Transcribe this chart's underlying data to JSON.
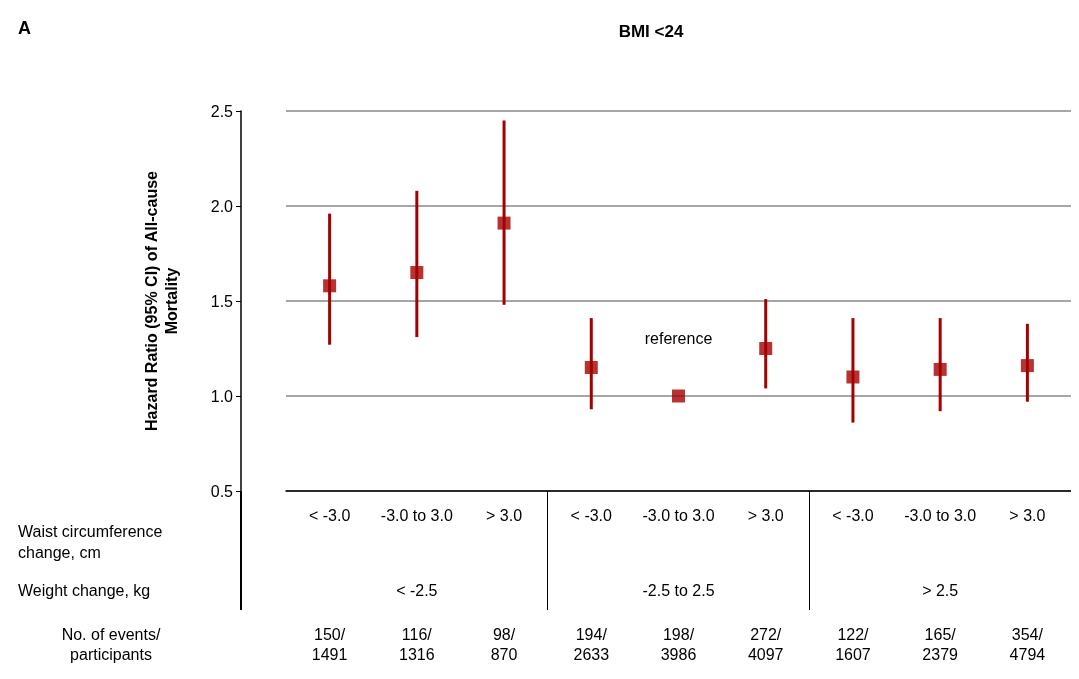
{
  "chart_data": {
    "type": "scatter",
    "title": "BMI <24",
    "xlabel": "Waist circumference change, cm",
    "ylabel": "Hazard Ratio (95% CI) of All-cause\nMortality",
    "categories": [
      "< -3.0",
      "-3.0 to 3.0",
      "> 3.0",
      "< -3.0",
      "-3.0 to 3.0",
      "> 3.0",
      "< -3.0",
      "-3.0 to 3.0",
      "> 3.0"
    ],
    "series": [
      {
        "color": "#a50000",
        "values": [
          1.58,
          1.65,
          1.91,
          1.15,
          1.0,
          1.25,
          1.1,
          1.14,
          1.16
        ],
        "errors": [
          [
            1.27,
            1.96
          ],
          [
            1.31,
            2.08
          ],
          [
            1.48,
            2.45
          ],
          [
            0.93,
            1.41
          ],
          null,
          [
            1.04,
            1.51
          ],
          [
            0.86,
            1.41
          ],
          [
            0.92,
            1.41
          ],
          [
            0.97,
            1.38
          ]
        ]
      }
    ],
    "ylim": [
      0.5,
      2.5
    ],
    "yticks": [
      {
        "value": 0.5,
        "label": "0.5"
      },
      {
        "value": 1.0,
        "label": "1.0"
      },
      {
        "value": 1.5,
        "label": "1.5"
      },
      {
        "value": 2.0,
        "label": "2.0"
      },
      {
        "value": 2.5,
        "label": "2.5"
      }
    ],
    "grid": "y",
    "marker": "square",
    "annotations": [
      "A",
      "reference",
      "Weight change, kg",
      "< -2.5",
      "-2.5 to 2.5",
      "> 2.5",
      "No. of events/\nparticipants",
      "150/\n1491",
      "116/\n1316",
      "98/\n870",
      "194/\n2633",
      "198/\n3986",
      "272/\n4097",
      "122/\n1607",
      "165/\n2379",
      "354/\n4794"
    ]
  }
}
